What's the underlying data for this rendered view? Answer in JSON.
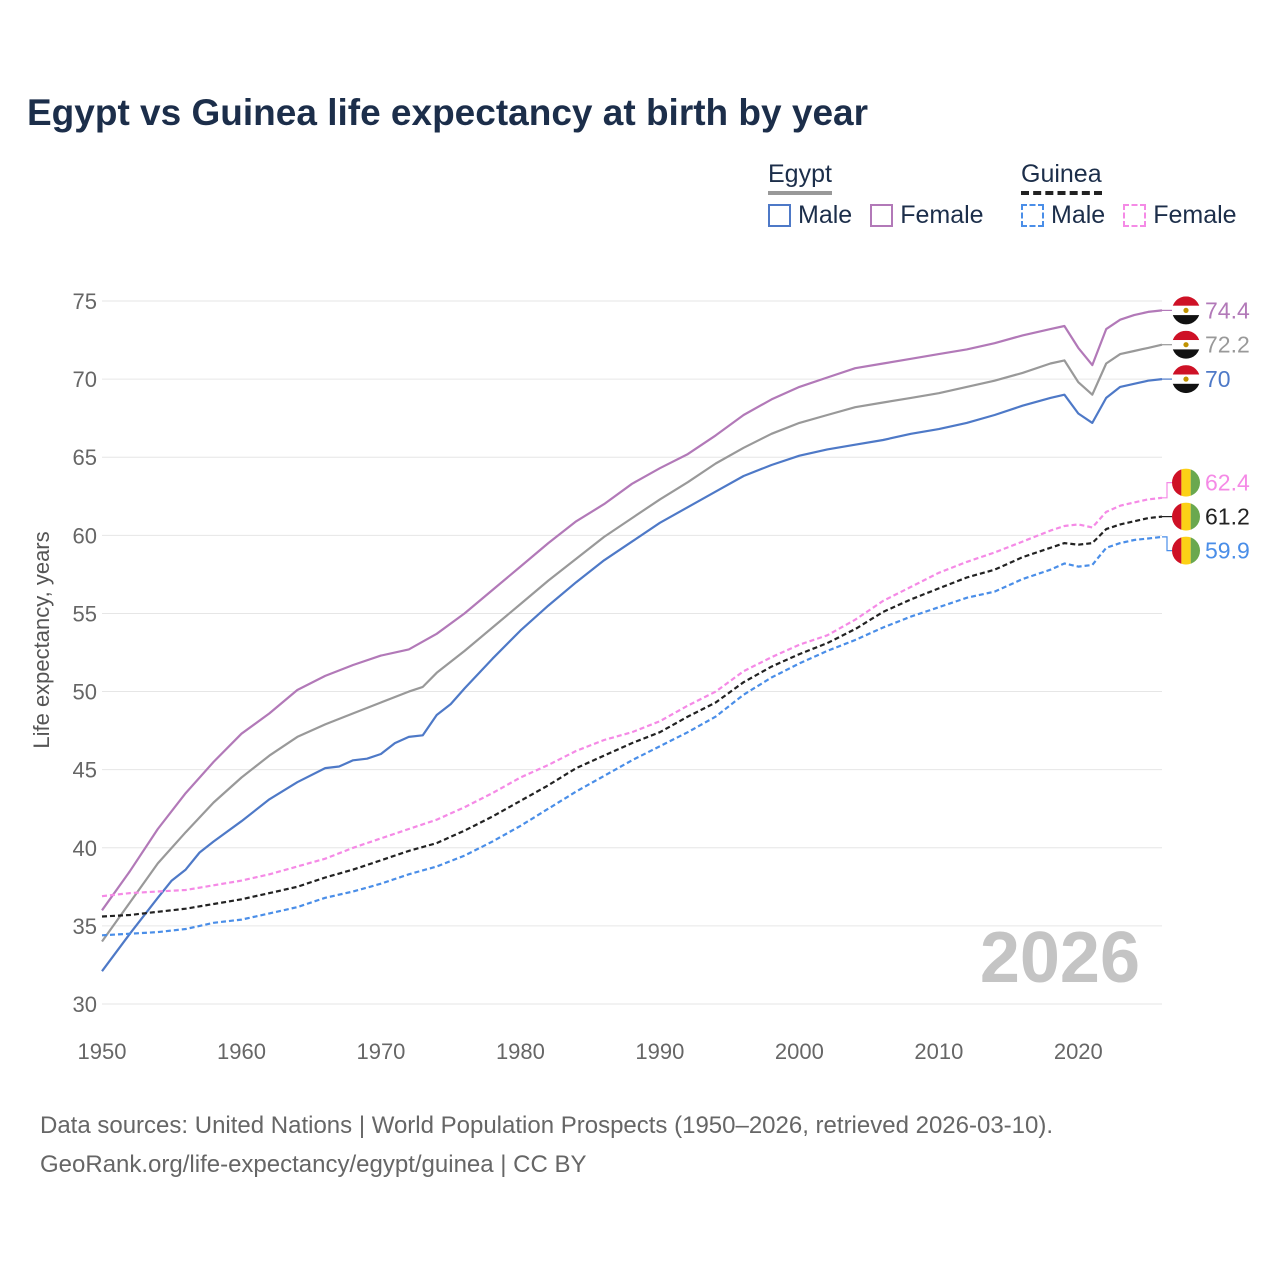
{
  "title": "Egypt vs Guinea life expectancy at birth by year",
  "legend": {
    "egypt": {
      "label": "Egypt",
      "male": "Male",
      "female": "Female"
    },
    "guinea": {
      "label": "Guinea",
      "male": "Male",
      "female": "Female"
    }
  },
  "source": {
    "line1": "Data sources: United Nations | World Population Prospects (1950–2026, retrieved 2026-03-10).",
    "line2": "GeoRank.org/life-expectancy/egypt/guinea | CC BY"
  },
  "year_watermark": "2026",
  "colors": {
    "egypt_male": "#4e79c7",
    "egypt_female": "#b279b8",
    "egypt_total": "#999999",
    "guinea_male": "#4a8ee8",
    "guinea_female": "#f58ae6",
    "guinea_total": "#222222",
    "title": "#1c2e4a"
  },
  "chart_data": {
    "type": "line",
    "title": "Egypt vs Guinea life expectancy at birth by year",
    "xlabel": "",
    "ylabel": "Life expectancy, years",
    "xlim": [
      1950,
      2026
    ],
    "ylim": [
      30,
      75
    ],
    "xticks": [
      1950,
      1960,
      1970,
      1980,
      1990,
      2000,
      2010,
      2020
    ],
    "yticks": [
      30,
      35,
      40,
      45,
      50,
      55,
      60,
      65,
      70,
      75
    ],
    "grid": true,
    "legend_position": "top-right",
    "series": [
      {
        "name": "Egypt Female",
        "key": "egypt_female",
        "color": "#b279b8",
        "dashed": false,
        "end_label": "74.4",
        "points": [
          [
            1950,
            36.0
          ],
          [
            1952,
            38.5
          ],
          [
            1954,
            41.2
          ],
          [
            1956,
            43.5
          ],
          [
            1958,
            45.5
          ],
          [
            1960,
            47.3
          ],
          [
            1962,
            48.6
          ],
          [
            1964,
            50.1
          ],
          [
            1966,
            51.0
          ],
          [
            1968,
            51.7
          ],
          [
            1970,
            52.3
          ],
          [
            1972,
            52.7
          ],
          [
            1974,
            53.7
          ],
          [
            1976,
            55.0
          ],
          [
            1978,
            56.5
          ],
          [
            1980,
            58.0
          ],
          [
            1982,
            59.5
          ],
          [
            1984,
            60.9
          ],
          [
            1986,
            62.0
          ],
          [
            1988,
            63.3
          ],
          [
            1990,
            64.3
          ],
          [
            1992,
            65.2
          ],
          [
            1994,
            66.4
          ],
          [
            1996,
            67.7
          ],
          [
            1998,
            68.7
          ],
          [
            2000,
            69.5
          ],
          [
            2002,
            70.1
          ],
          [
            2004,
            70.7
          ],
          [
            2006,
            71.0
          ],
          [
            2008,
            71.3
          ],
          [
            2010,
            71.6
          ],
          [
            2012,
            71.9
          ],
          [
            2014,
            72.3
          ],
          [
            2016,
            72.8
          ],
          [
            2018,
            73.2
          ],
          [
            2019,
            73.4
          ],
          [
            2020,
            72.0
          ],
          [
            2021,
            70.9
          ],
          [
            2022,
            73.2
          ],
          [
            2023,
            73.8
          ],
          [
            2024,
            74.1
          ],
          [
            2025,
            74.3
          ],
          [
            2026,
            74.4
          ]
        ]
      },
      {
        "name": "Egypt Total",
        "key": "egypt_total",
        "color": "#999999",
        "dashed": false,
        "end_label": "72.2",
        "points": [
          [
            1950,
            34.0
          ],
          [
            1952,
            36.5
          ],
          [
            1954,
            39.0
          ],
          [
            1956,
            41.0
          ],
          [
            1958,
            42.9
          ],
          [
            1960,
            44.5
          ],
          [
            1962,
            45.9
          ],
          [
            1964,
            47.1
          ],
          [
            1966,
            47.9
          ],
          [
            1968,
            48.6
          ],
          [
            1970,
            49.3
          ],
          [
            1972,
            50.0
          ],
          [
            1973,
            50.3
          ],
          [
            1974,
            51.2
          ],
          [
            1976,
            52.6
          ],
          [
            1978,
            54.1
          ],
          [
            1980,
            55.6
          ],
          [
            1982,
            57.1
          ],
          [
            1984,
            58.5
          ],
          [
            1986,
            59.9
          ],
          [
            1988,
            61.1
          ],
          [
            1990,
            62.3
          ],
          [
            1992,
            63.4
          ],
          [
            1994,
            64.6
          ],
          [
            1996,
            65.6
          ],
          [
            1998,
            66.5
          ],
          [
            2000,
            67.2
          ],
          [
            2002,
            67.7
          ],
          [
            2004,
            68.2
          ],
          [
            2006,
            68.5
          ],
          [
            2008,
            68.8
          ],
          [
            2010,
            69.1
          ],
          [
            2012,
            69.5
          ],
          [
            2014,
            69.9
          ],
          [
            2016,
            70.4
          ],
          [
            2018,
            71.0
          ],
          [
            2019,
            71.2
          ],
          [
            2020,
            69.8
          ],
          [
            2021,
            69.0
          ],
          [
            2022,
            71.0
          ],
          [
            2023,
            71.6
          ],
          [
            2024,
            71.8
          ],
          [
            2025,
            72.0
          ],
          [
            2026,
            72.2
          ]
        ]
      },
      {
        "name": "Egypt Male",
        "key": "egypt_male",
        "color": "#4e79c7",
        "dashed": false,
        "end_label": "70",
        "points": [
          [
            1950,
            32.1
          ],
          [
            1952,
            34.5
          ],
          [
            1954,
            36.8
          ],
          [
            1955,
            37.9
          ],
          [
            1956,
            38.6
          ],
          [
            1957,
            39.7
          ],
          [
            1958,
            40.4
          ],
          [
            1960,
            41.7
          ],
          [
            1962,
            43.1
          ],
          [
            1964,
            44.2
          ],
          [
            1966,
            45.1
          ],
          [
            1967,
            45.2
          ],
          [
            1968,
            45.6
          ],
          [
            1969,
            45.7
          ],
          [
            1970,
            46.0
          ],
          [
            1971,
            46.7
          ],
          [
            1972,
            47.1
          ],
          [
            1973,
            47.2
          ],
          [
            1974,
            48.5
          ],
          [
            1975,
            49.2
          ],
          [
            1976,
            50.2
          ],
          [
            1978,
            52.1
          ],
          [
            1980,
            53.9
          ],
          [
            1982,
            55.5
          ],
          [
            1984,
            57.0
          ],
          [
            1986,
            58.4
          ],
          [
            1988,
            59.6
          ],
          [
            1990,
            60.8
          ],
          [
            1992,
            61.8
          ],
          [
            1994,
            62.8
          ],
          [
            1996,
            63.8
          ],
          [
            1998,
            64.5
          ],
          [
            2000,
            65.1
          ],
          [
            2002,
            65.5
          ],
          [
            2004,
            65.8
          ],
          [
            2006,
            66.1
          ],
          [
            2008,
            66.5
          ],
          [
            2010,
            66.8
          ],
          [
            2012,
            67.2
          ],
          [
            2014,
            67.7
          ],
          [
            2016,
            68.3
          ],
          [
            2018,
            68.8
          ],
          [
            2019,
            69.0
          ],
          [
            2020,
            67.8
          ],
          [
            2021,
            67.2
          ],
          [
            2022,
            68.8
          ],
          [
            2023,
            69.5
          ],
          [
            2024,
            69.7
          ],
          [
            2025,
            69.9
          ],
          [
            2026,
            70.0
          ]
        ]
      },
      {
        "name": "Guinea Female",
        "key": "guinea_female",
        "color": "#f58ae6",
        "dashed": true,
        "end_label": "62.4",
        "points": [
          [
            1950,
            36.9
          ],
          [
            1952,
            37.1
          ],
          [
            1954,
            37.2
          ],
          [
            1956,
            37.3
          ],
          [
            1958,
            37.6
          ],
          [
            1960,
            37.9
          ],
          [
            1962,
            38.3
          ],
          [
            1964,
            38.8
          ],
          [
            1966,
            39.3
          ],
          [
            1968,
            40.0
          ],
          [
            1970,
            40.6
          ],
          [
            1972,
            41.2
          ],
          [
            1974,
            41.8
          ],
          [
            1976,
            42.6
          ],
          [
            1978,
            43.5
          ],
          [
            1980,
            44.5
          ],
          [
            1982,
            45.3
          ],
          [
            1984,
            46.2
          ],
          [
            1986,
            46.9
          ],
          [
            1988,
            47.4
          ],
          [
            1990,
            48.1
          ],
          [
            1992,
            49.1
          ],
          [
            1994,
            50.0
          ],
          [
            1996,
            51.3
          ],
          [
            1998,
            52.2
          ],
          [
            2000,
            53.0
          ],
          [
            2002,
            53.6
          ],
          [
            2004,
            54.6
          ],
          [
            2006,
            55.8
          ],
          [
            2008,
            56.7
          ],
          [
            2010,
            57.6
          ],
          [
            2012,
            58.3
          ],
          [
            2014,
            58.9
          ],
          [
            2016,
            59.6
          ],
          [
            2018,
            60.3
          ],
          [
            2019,
            60.6
          ],
          [
            2020,
            60.7
          ],
          [
            2021,
            60.5
          ],
          [
            2022,
            61.5
          ],
          [
            2023,
            61.9
          ],
          [
            2024,
            62.1
          ],
          [
            2025,
            62.3
          ],
          [
            2026,
            62.4
          ]
        ]
      },
      {
        "name": "Guinea Total",
        "key": "guinea_total",
        "color": "#222222",
        "dashed": true,
        "end_label": "61.2",
        "points": [
          [
            1950,
            35.6
          ],
          [
            1952,
            35.7
          ],
          [
            1954,
            35.9
          ],
          [
            1956,
            36.1
          ],
          [
            1958,
            36.4
          ],
          [
            1960,
            36.7
          ],
          [
            1962,
            37.1
          ],
          [
            1964,
            37.5
          ],
          [
            1966,
            38.1
          ],
          [
            1968,
            38.6
          ],
          [
            1970,
            39.2
          ],
          [
            1972,
            39.8
          ],
          [
            1974,
            40.3
          ],
          [
            1976,
            41.1
          ],
          [
            1978,
            42.0
          ],
          [
            1980,
            43.0
          ],
          [
            1982,
            44.0
          ],
          [
            1984,
            45.1
          ],
          [
            1986,
            45.9
          ],
          [
            1988,
            46.7
          ],
          [
            1990,
            47.4
          ],
          [
            1992,
            48.4
          ],
          [
            1994,
            49.3
          ],
          [
            1996,
            50.6
          ],
          [
            1998,
            51.6
          ],
          [
            2000,
            52.4
          ],
          [
            2002,
            53.1
          ],
          [
            2004,
            54.0
          ],
          [
            2006,
            55.1
          ],
          [
            2008,
            55.9
          ],
          [
            2010,
            56.6
          ],
          [
            2012,
            57.3
          ],
          [
            2014,
            57.8
          ],
          [
            2016,
            58.6
          ],
          [
            2018,
            59.2
          ],
          [
            2019,
            59.5
          ],
          [
            2020,
            59.4
          ],
          [
            2021,
            59.5
          ],
          [
            2022,
            60.4
          ],
          [
            2023,
            60.7
          ],
          [
            2024,
            60.9
          ],
          [
            2025,
            61.1
          ],
          [
            2026,
            61.2
          ]
        ]
      },
      {
        "name": "Guinea Male",
        "key": "guinea_male",
        "color": "#4a8ee8",
        "dashed": true,
        "end_label": "59.9",
        "points": [
          [
            1950,
            34.4
          ],
          [
            1952,
            34.5
          ],
          [
            1954,
            34.6
          ],
          [
            1956,
            34.8
          ],
          [
            1958,
            35.2
          ],
          [
            1960,
            35.4
          ],
          [
            1962,
            35.8
          ],
          [
            1964,
            36.2
          ],
          [
            1966,
            36.8
          ],
          [
            1968,
            37.2
          ],
          [
            1970,
            37.7
          ],
          [
            1972,
            38.3
          ],
          [
            1974,
            38.8
          ],
          [
            1976,
            39.5
          ],
          [
            1978,
            40.4
          ],
          [
            1980,
            41.4
          ],
          [
            1982,
            42.5
          ],
          [
            1984,
            43.6
          ],
          [
            1986,
            44.6
          ],
          [
            1988,
            45.6
          ],
          [
            1990,
            46.5
          ],
          [
            1992,
            47.4
          ],
          [
            1994,
            48.4
          ],
          [
            1996,
            49.8
          ],
          [
            1998,
            50.9
          ],
          [
            2000,
            51.8
          ],
          [
            2002,
            52.6
          ],
          [
            2004,
            53.3
          ],
          [
            2006,
            54.1
          ],
          [
            2008,
            54.8
          ],
          [
            2010,
            55.4
          ],
          [
            2012,
            56.0
          ],
          [
            2014,
            56.4
          ],
          [
            2016,
            57.2
          ],
          [
            2018,
            57.8
          ],
          [
            2019,
            58.2
          ],
          [
            2020,
            58.0
          ],
          [
            2021,
            58.1
          ],
          [
            2022,
            59.2
          ],
          [
            2023,
            59.5
          ],
          [
            2024,
            59.7
          ],
          [
            2025,
            59.8
          ],
          [
            2026,
            59.9
          ]
        ]
      }
    ]
  }
}
